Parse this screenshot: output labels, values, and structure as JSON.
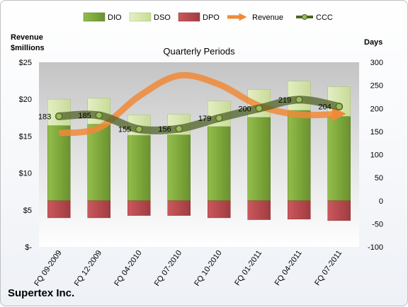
{
  "chart_data": {
    "type": "bar",
    "title": "Quarterly Periods",
    "company": "Supertex Inc.",
    "categories": [
      "FQ 09-2009",
      "FQ 12-2009",
      "FQ 04-2010",
      "FQ 07-2010",
      "FQ 10-2010",
      "FQ 01-2011",
      "FQ 04-2011",
      "FQ 07-2011"
    ],
    "left_axis": {
      "label_line1": "Revenue",
      "label_line2": "$millions",
      "range": [
        0,
        25
      ],
      "ticks": [
        "$-",
        "$5",
        "$10",
        "$15",
        "$20",
        "$25"
      ]
    },
    "right_axis": {
      "label": "Days",
      "range": [
        -100,
        300
      ],
      "ticks": [
        "-100",
        "-50",
        "0",
        "50",
        "100",
        "150",
        "200",
        "250",
        "300"
      ]
    },
    "series": [
      {
        "name": "DIO",
        "type": "stacked-bar",
        "axis": "right",
        "values": [
          163,
          166,
          142,
          143,
          161,
          181,
          196,
          183
        ],
        "color": "#7ea83c"
      },
      {
        "name": "DSO",
        "type": "stacked-bar",
        "axis": "right",
        "values": [
          57,
          56,
          44,
          44,
          55,
          60,
          63,
          64
        ],
        "color": "#d5e6a9"
      },
      {
        "name": "DPO",
        "type": "stacked-bar",
        "axis": "right",
        "values": [
          -37,
          -37,
          -32,
          -32,
          -37,
          -41,
          -40,
          -43
        ],
        "color": "#b94a4e"
      },
      {
        "name": "Revenue",
        "type": "line",
        "axis": "left",
        "values": [
          15.4,
          16.1,
          20.4,
          23.2,
          22.0,
          19.1,
          17.9,
          18.0
        ],
        "color": "#f08a38"
      },
      {
        "name": "CCC",
        "type": "line",
        "axis": "right",
        "values": [
          183,
          185,
          155,
          156,
          179,
          200,
          219,
          204
        ],
        "labels": [
          "183",
          "185",
          "155",
          "156",
          "179",
          "200",
          "219",
          "204"
        ],
        "color": "#4f6228"
      }
    ],
    "legend_position": "top",
    "grid": false
  }
}
